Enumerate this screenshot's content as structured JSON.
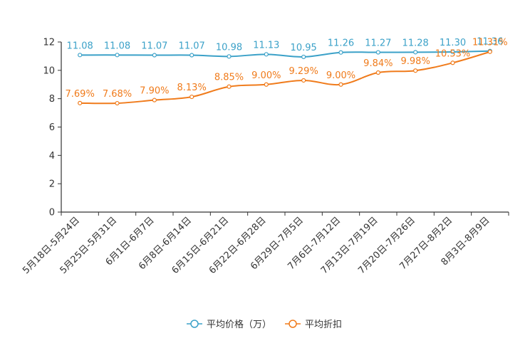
{
  "chart_data": {
    "type": "line",
    "title": "",
    "xlabel": "",
    "ylabel": "",
    "ylim": [
      0,
      12
    ],
    "yticks": [
      0,
      2,
      4,
      6,
      8,
      10,
      12
    ],
    "categories": [
      "5月18日-5月24日",
      "5月25日-5月31日",
      "6月1日-6月7日",
      "6月8日-6月14日",
      "6月15日-6月21日",
      "6月22日-6月28日",
      "6月29日-7月5日",
      "7月6日-7月12日",
      "7月13日-7月19日",
      "7月20日-7月26日",
      "7月27日-8月2日",
      "8月3日-8月9日"
    ],
    "series": [
      {
        "name": "平均价格（万）",
        "color": "#3ba1c8",
        "values": [
          11.08,
          11.08,
          11.07,
          11.07,
          10.98,
          11.13,
          10.95,
          11.26,
          11.27,
          11.28,
          11.3,
          11.36
        ],
        "labels": [
          "11.08",
          "11.08",
          "11.07",
          "11.07",
          "10.98",
          "11.13",
          "10.95",
          "11.26",
          "11.27",
          "11.28",
          "11.30",
          "11.36"
        ]
      },
      {
        "name": "平均折扣",
        "color": "#f07b1b",
        "values": [
          7.69,
          7.68,
          7.9,
          8.13,
          8.85,
          9.0,
          9.29,
          9.0,
          9.84,
          9.98,
          10.53,
          11.31
        ],
        "labels": [
          "7.69%",
          "7.68%",
          "7.90%",
          "8.13%",
          "8.85%",
          "9.00%",
          "9.29%",
          "9.00%",
          "9.84%",
          "9.98%",
          "10.53%",
          "11.31%"
        ]
      }
    ],
    "legend_position": "bottom"
  }
}
